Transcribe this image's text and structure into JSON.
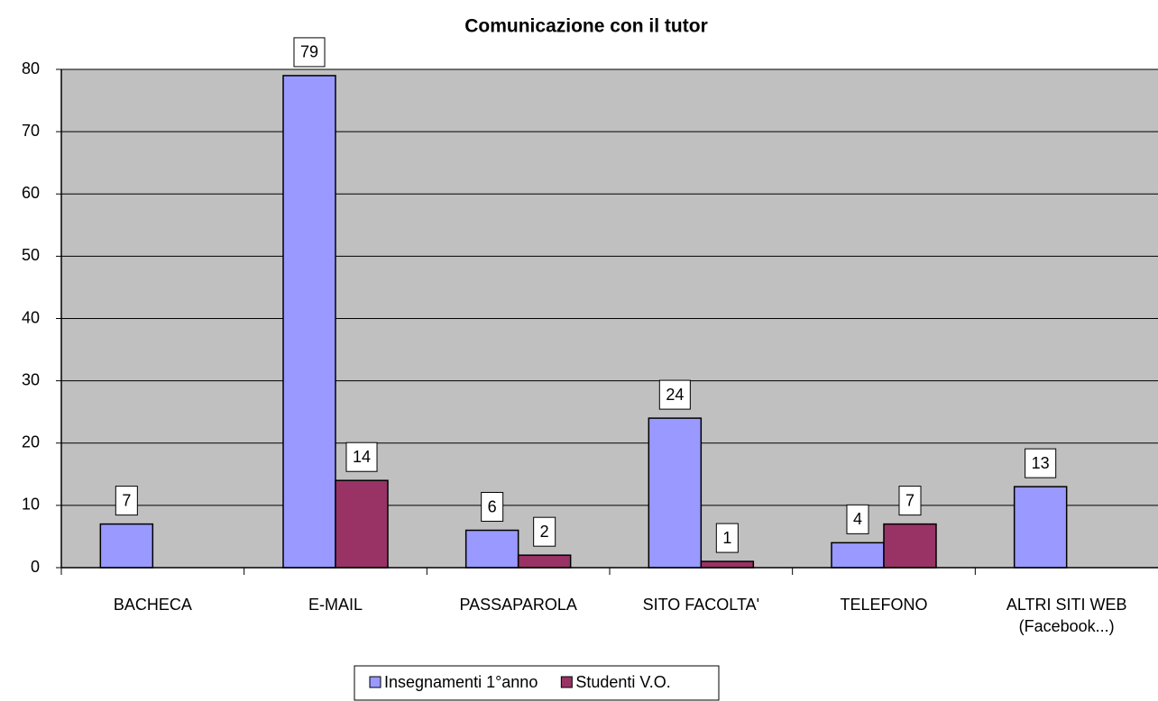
{
  "chart_data": {
    "type": "bar",
    "title": "Comunicazione con il tutor",
    "categories": [
      "BACHECA",
      "E-MAIL",
      "PASSAPAROLA",
      "SITO FACOLTA'",
      "TELEFONO",
      "ALTRI SITI WEB\n(Facebook...)"
    ],
    "series": [
      {
        "name": "Insegnamenti 1°anno",
        "color": "#9999ff",
        "values": [
          7,
          79,
          6,
          24,
          4,
          13
        ]
      },
      {
        "name": "Studenti V.O.",
        "color": "#993366",
        "values": [
          null,
          14,
          2,
          1,
          7,
          null
        ]
      }
    ],
    "ylim": [
      0,
      80
    ],
    "yticks": [
      0,
      10,
      20,
      30,
      40,
      50,
      60,
      70,
      80
    ],
    "grid": true,
    "plot_background": "#c0c0c0",
    "legend": "bottom"
  }
}
